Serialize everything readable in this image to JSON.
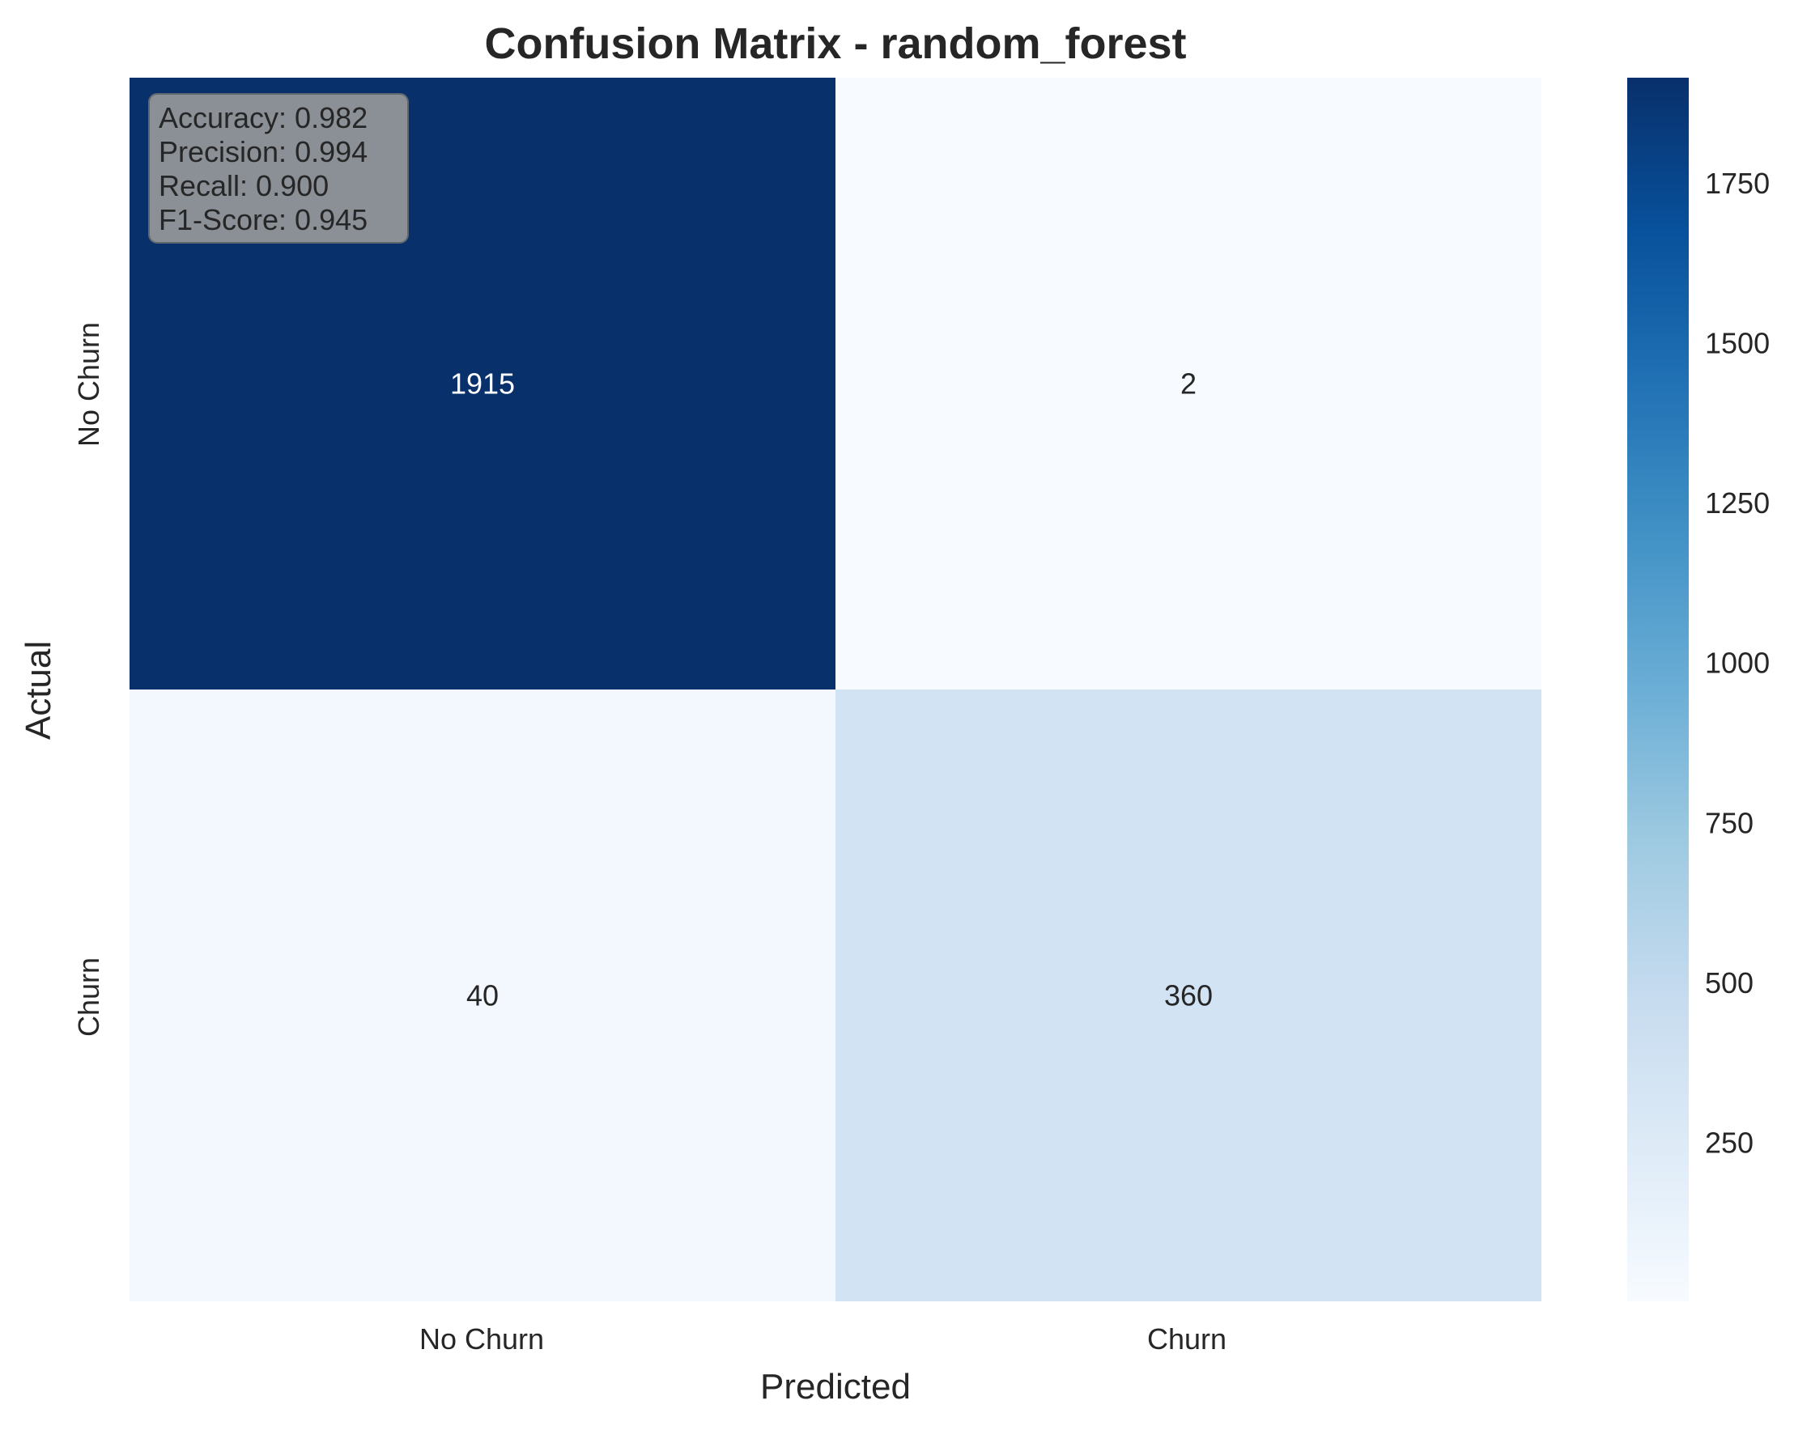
{
  "chart_data": {
    "type": "heatmap",
    "title": "Confusion Matrix - random_forest",
    "xlabel": "Predicted",
    "ylabel": "Actual",
    "x_categories": [
      "No Churn",
      "Churn"
    ],
    "y_categories": [
      "No Churn",
      "Churn"
    ],
    "values": [
      [
        1915,
        2
      ],
      [
        40,
        360
      ]
    ],
    "colormap": "Blues",
    "colorbar": {
      "range": [
        2,
        1915
      ],
      "ticks": [
        250,
        500,
        750,
        1000,
        1250,
        1500,
        1750
      ]
    },
    "annotation_box": {
      "lines": [
        "Accuracy: 0.982",
        "Precision: 0.994",
        "Recall: 0.900",
        "F1-Score: 0.945"
      ]
    }
  }
}
